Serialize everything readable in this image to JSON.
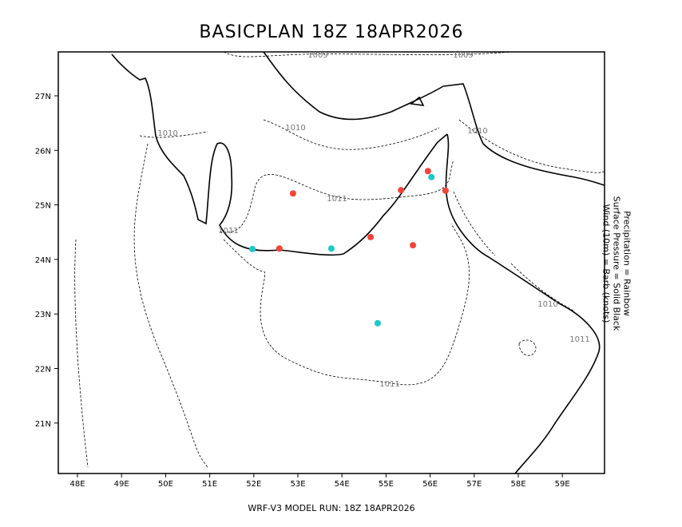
{
  "title": "BASICPLAN 18Z 18APR2026",
  "footer": "WRF-V3 MODEL RUN: 18Z 18APR2026",
  "legend": {
    "lines": [
      "Precipitation = Rainbow",
      "Surface Pressure = Solid Black",
      "Wind (10m) = Barb (knots)"
    ]
  },
  "map": {
    "lon_ticks": [
      "48E",
      "49E",
      "50E",
      "51E",
      "52E",
      "53E",
      "54E",
      "55E",
      "56E",
      "57E",
      "58E",
      "59E"
    ],
    "lat_ticks": [
      "27N",
      "26N",
      "25N",
      "24N",
      "23N",
      "22N",
      "21N"
    ],
    "lon_range": [
      47.6,
      60.0
    ],
    "lat_range": [
      20.2,
      27.8
    ],
    "contour_labels": [
      "1009",
      "1009",
      "1010",
      "1010",
      "1010",
      "1011",
      "1011",
      "1010",
      "1011",
      "1011"
    ],
    "colors": {
      "red": "#f44336",
      "cyan": "#1ec8c8",
      "coast": "#000000",
      "contour": "#000000"
    },
    "stations": [
      {
        "lon": 52.89,
        "lat": 25.21,
        "color": "red"
      },
      {
        "lon": 55.34,
        "lat": 25.27,
        "color": "red"
      },
      {
        "lon": 55.95,
        "lat": 25.62,
        "color": "red"
      },
      {
        "lon": 56.35,
        "lat": 25.26,
        "color": "red"
      },
      {
        "lon": 52.58,
        "lat": 24.2,
        "color": "red"
      },
      {
        "lon": 54.65,
        "lat": 24.41,
        "color": "red"
      },
      {
        "lon": 55.61,
        "lat": 24.26,
        "color": "red"
      },
      {
        "lon": 51.97,
        "lat": 24.19,
        "color": "cyan"
      },
      {
        "lon": 53.76,
        "lat": 24.2,
        "color": "cyan"
      },
      {
        "lon": 56.03,
        "lat": 25.51,
        "color": "cyan"
      },
      {
        "lon": 54.81,
        "lat": 22.83,
        "color": "cyan"
      }
    ]
  }
}
